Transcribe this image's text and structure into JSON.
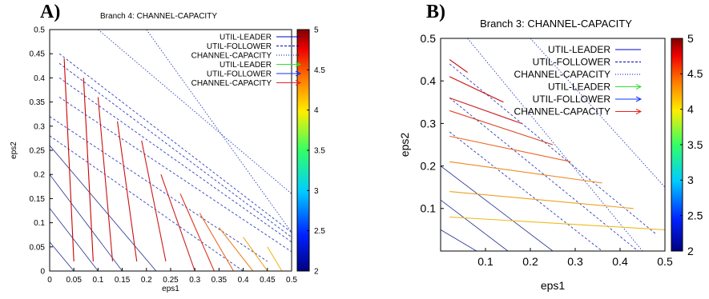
{
  "chart_data": [
    {
      "type": "line",
      "panel_label": "A)",
      "title": "Branch 4: CHANNEL-CAPACITY",
      "xlabel": "eps1",
      "ylabel": "eps2",
      "xlim": [
        0,
        0.5
      ],
      "ylim": [
        0,
        0.5
      ],
      "xticks": [
        "0",
        "0.05",
        "0.1",
        "0.15",
        "0.2",
        "0.25",
        "0.3",
        "0.35",
        "0.4",
        "0.45",
        "0.5"
      ],
      "yticks": [
        "0",
        "0.05",
        "0.1",
        "0.15",
        "0.2",
        "0.25",
        "0.3",
        "0.35",
        "0.4",
        "0.45",
        "0.5"
      ],
      "colorbar": {
        "range": [
          2,
          5
        ],
        "ticks": [
          "2",
          "2.5",
          "3",
          "3.5",
          "4",
          "4.5",
          "5"
        ]
      },
      "legend": {
        "position": "top-right",
        "entries": [
          {
            "label": "UTIL-LEADER",
            "style": "solid",
            "color": "#0000cc"
          },
          {
            "label": "UTIL-FOLLOWER",
            "style": "dashed",
            "color": "#0000cc"
          },
          {
            "label": "CHANNEL-CAPACITY",
            "style": "dotted",
            "color": "#0000cc"
          },
          {
            "label": "UTIL-LEADER",
            "style": "arrow",
            "color": "#33dd33"
          },
          {
            "label": "UTIL-FOLLOWER",
            "style": "arrow",
            "color": "#1133ff"
          },
          {
            "label": "CHANNEL-CAPACITY",
            "style": "arrow",
            "color": "#ee2222"
          }
        ]
      },
      "series": [
        {
          "name": "CHANNEL-CAPACITY",
          "values": [
            {
              "x": [
                0.2,
                0.5
              ],
              "y": [
                0.5,
                0.08
              ]
            },
            {
              "x": [
                0.1,
                0.5
              ],
              "y": [
                0.5,
                0.16
              ]
            }
          ]
        },
        {
          "name": "UTIL-FOLLOWER",
          "values": [
            {
              "x": [
                0.02,
                0.5
              ],
              "y": [
                0.45,
                0.08
              ]
            },
            {
              "x": [
                0.02,
                0.5
              ],
              "y": [
                0.43,
                0.07
              ]
            },
            {
              "x": [
                0.02,
                0.5
              ],
              "y": [
                0.4,
                0.06
              ]
            },
            {
              "x": [
                0.02,
                0.5
              ],
              "y": [
                0.36,
                0.04
              ]
            },
            {
              "x": [
                0.0,
                0.45
              ],
              "y": [
                0.32,
                0.02
              ]
            },
            {
              "x": [
                0.0,
                0.4
              ],
              "y": [
                0.28,
                0.0
              ]
            }
          ]
        },
        {
          "name": "UTIL-LEADER",
          "values": [
            {
              "x": [
                0.0,
                0.22
              ],
              "y": [
                0.26,
                0.0
              ]
            },
            {
              "x": [
                0.0,
                0.15
              ],
              "y": [
                0.2,
                0.0
              ]
            },
            {
              "x": [
                0.0,
                0.1
              ],
              "y": [
                0.13,
                0.0
              ]
            },
            {
              "x": [
                0.0,
                0.05
              ],
              "y": [
                0.06,
                0.0
              ]
            }
          ]
        },
        {
          "name": "CHANNEL-CAPACITY field lines",
          "values": [
            {
              "x": [
                0.03,
                0.05
              ],
              "y": [
                0.44,
                0.02
              ],
              "color": "#cc0000"
            },
            {
              "x": [
                0.07,
                0.09
              ],
              "y": [
                0.4,
                0.02
              ],
              "color": "#cc0000"
            },
            {
              "x": [
                0.1,
                0.13
              ],
              "y": [
                0.36,
                0.02
              ],
              "color": "#cc1010"
            },
            {
              "x": [
                0.14,
                0.18
              ],
              "y": [
                0.31,
                0.02
              ],
              "color": "#cc1010"
            },
            {
              "x": [
                0.19,
                0.24
              ],
              "y": [
                0.27,
                0.02
              ],
              "color": "#cc1a1a"
            },
            {
              "x": [
                0.23,
                0.3
              ],
              "y": [
                0.2,
                0.0
              ],
              "color": "#cc2020"
            },
            {
              "x": [
                0.27,
                0.34
              ],
              "y": [
                0.16,
                0.0
              ],
              "color": "#dd3322"
            },
            {
              "x": [
                0.31,
                0.38
              ],
              "y": [
                0.12,
                0.0
              ],
              "color": "#ee6622"
            },
            {
              "x": [
                0.35,
                0.42
              ],
              "y": [
                0.09,
                0.0
              ],
              "color": "#ee8822"
            },
            {
              "x": [
                0.4,
                0.45
              ],
              "y": [
                0.07,
                0.0
              ],
              "color": "#eeaa22"
            },
            {
              "x": [
                0.45,
                0.48
              ],
              "y": [
                0.05,
                0.0
              ],
              "color": "#eebb22"
            }
          ]
        }
      ]
    },
    {
      "type": "line",
      "panel_label": "B)",
      "title": "Branch 3: CHANNEL-CAPACITY",
      "xlabel": "eps1",
      "ylabel": "eps2",
      "xlim": [
        0,
        0.5
      ],
      "ylim": [
        0,
        0.5
      ],
      "xticks": [
        "0.1",
        "0.2",
        "0.3",
        "0.4",
        "0.5"
      ],
      "yticks": [
        "0.1",
        "0.2",
        "0.3",
        "0.4",
        "0.5"
      ],
      "colorbar": {
        "range": [
          2,
          5
        ],
        "ticks": [
          "2",
          "2.5",
          "3",
          "3.5",
          "4",
          "4.5",
          "5"
        ]
      },
      "legend": {
        "position": "top-right",
        "entries": [
          {
            "label": "UTIL-LEADER",
            "style": "solid",
            "color": "#0000cc"
          },
          {
            "label": "UTIL-FOLLOWER",
            "style": "dashed",
            "color": "#0000cc"
          },
          {
            "label": "CHANNEL-CAPACITY",
            "style": "dotted",
            "color": "#0000cc"
          },
          {
            "label": "UTIL-LEADER",
            "style": "arrow",
            "color": "#33dd33"
          },
          {
            "label": "UTIL-FOLLOWER",
            "style": "arrow",
            "color": "#1133ff"
          },
          {
            "label": "CHANNEL-CAPACITY",
            "style": "arrow",
            "color": "#ee2222"
          }
        ]
      },
      "series": [
        {
          "name": "CHANNEL-CAPACITY",
          "values": [
            {
              "x": [
                0.2,
                0.5
              ],
              "y": [
                0.5,
                0.15
              ]
            },
            {
              "x": [
                0.06,
                0.45
              ],
              "y": [
                0.5,
                0.0
              ]
            }
          ]
        },
        {
          "name": "UTIL-FOLLOWER",
          "values": [
            {
              "x": [
                0.02,
                0.48
              ],
              "y": [
                0.44,
                0.04
              ]
            },
            {
              "x": [
                0.02,
                0.44
              ],
              "y": [
                0.36,
                0.0
              ]
            },
            {
              "x": [
                0.02,
                0.36
              ],
              "y": [
                0.28,
                0.0
              ]
            }
          ]
        },
        {
          "name": "UTIL-LEADER",
          "values": [
            {
              "x": [
                0.0,
                0.25
              ],
              "y": [
                0.2,
                0.0
              ]
            },
            {
              "x": [
                0.0,
                0.15
              ],
              "y": [
                0.12,
                0.0
              ]
            },
            {
              "x": [
                0.0,
                0.08
              ],
              "y": [
                0.05,
                0.0
              ]
            }
          ]
        },
        {
          "name": "CHANNEL-CAPACITY field lines",
          "values": [
            {
              "x": [
                0.02,
                0.06
              ],
              "y": [
                0.45,
                0.42
              ],
              "color": "#cc0000"
            },
            {
              "x": [
                0.02,
                0.14
              ],
              "y": [
                0.41,
                0.35
              ],
              "color": "#cc1010"
            },
            {
              "x": [
                0.02,
                0.18
              ],
              "y": [
                0.36,
                0.3
              ],
              "color": "#cc2020"
            },
            {
              "x": [
                0.02,
                0.25
              ],
              "y": [
                0.33,
                0.25
              ],
              "color": "#dd4422"
            },
            {
              "x": [
                0.02,
                0.29
              ],
              "y": [
                0.27,
                0.21
              ],
              "color": "#ee6622"
            },
            {
              "x": [
                0.02,
                0.36
              ],
              "y": [
                0.21,
                0.16
              ],
              "color": "#ee8822"
            },
            {
              "x": [
                0.02,
                0.43
              ],
              "y": [
                0.14,
                0.1
              ],
              "color": "#eea022"
            },
            {
              "x": [
                0.02,
                0.5
              ],
              "y": [
                0.08,
                0.05
              ],
              "color": "#eebb22"
            }
          ]
        }
      ]
    }
  ]
}
